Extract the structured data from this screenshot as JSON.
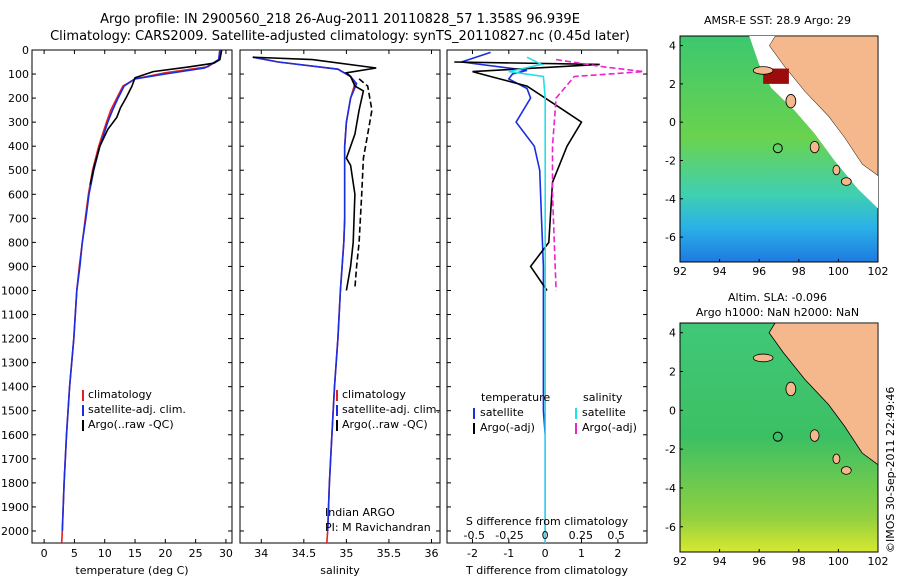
{
  "header": {
    "title_line1": "Argo profile: IN 2900560_218 26-Aug-2011 20110828_57 1.358S 96.939E",
    "title_line2": "Climatology: CARS2009. Satellite-adjusted climatology: synTS_20110827.nc (0.45d later)"
  },
  "colors": {
    "climatology": "#e02020",
    "satellite": "#1a2ee0",
    "argo": "#000000",
    "sal_satellite": "#22e0e8",
    "sal_argo": "#ee22cc"
  },
  "chart_data": [
    {
      "type": "line",
      "name": "temperature-profile",
      "xlabel": "temperature (deg C)",
      "xlim": [
        -2,
        31
      ],
      "ylim": [
        2050,
        0
      ],
      "xticks": [
        0,
        5,
        10,
        15,
        20,
        25,
        30
      ],
      "yticks": [
        0,
        100,
        200,
        300,
        400,
        500,
        600,
        700,
        800,
        900,
        1000,
        1100,
        1200,
        1300,
        1400,
        1500,
        1600,
        1700,
        1800,
        1900,
        2000
      ],
      "legend": [
        "climatology",
        "satellite-adj. clim.",
        "Argo(..raw -QC)"
      ],
      "series": [
        {
          "name": "climatology",
          "color": "#e02020",
          "points": [
            [
              29,
              0
            ],
            [
              28.8,
              40
            ],
            [
              27,
              70
            ],
            [
              20,
              95
            ],
            [
              15,
              120
            ],
            [
              13,
              150
            ],
            [
              12,
              200
            ],
            [
              11,
              250
            ],
            [
              10.3,
              300
            ],
            [
              9,
              400
            ],
            [
              8,
              500
            ],
            [
              7.3,
              600
            ],
            [
              6.8,
              700
            ],
            [
              6.3,
              800
            ],
            [
              5.8,
              900
            ],
            [
              5.4,
              1000
            ],
            [
              4.9,
              1200
            ],
            [
              4.2,
              1400
            ],
            [
              3.7,
              1600
            ],
            [
              3.3,
              1800
            ],
            [
              3,
              2000
            ],
            [
              2.9,
              2050
            ]
          ]
        },
        {
          "name": "satellite",
          "color": "#1a2ee0",
          "points": [
            [
              29,
              0
            ],
            [
              28.8,
              40
            ],
            [
              26.5,
              75
            ],
            [
              20,
              100
            ],
            [
              15,
              120
            ],
            [
              13.2,
              150
            ],
            [
              12.2,
              200
            ],
            [
              11.3,
              250
            ],
            [
              10.5,
              300
            ],
            [
              9.2,
              400
            ],
            [
              8.2,
              500
            ],
            [
              7.4,
              600
            ],
            [
              6.9,
              700
            ],
            [
              6.3,
              800
            ],
            [
              5.9,
              900
            ],
            [
              5.4,
              1000
            ],
            [
              4.9,
              1200
            ],
            [
              4.2,
              1400
            ],
            [
              3.7,
              1600
            ],
            [
              3.3,
              1800
            ],
            [
              3,
              2000
            ]
          ]
        },
        {
          "name": "argo",
          "color": "#000000",
          "points": [
            [
              29.3,
              0
            ],
            [
              29,
              40
            ],
            [
              28,
              55
            ],
            [
              24,
              70
            ],
            [
              18,
              90
            ],
            [
              15,
              115
            ],
            [
              14.5,
              150
            ],
            [
              13.5,
              200
            ],
            [
              12.6,
              240
            ],
            [
              12,
              280
            ],
            [
              10.5,
              330
            ],
            [
              9.2,
              400
            ],
            [
              8.3,
              480
            ],
            [
              7.6,
              560
            ]
          ]
        }
      ]
    },
    {
      "type": "line",
      "name": "salinity-profile",
      "xlabel": "salinity",
      "xlim": [
        33.75,
        36.1
      ],
      "ylim": [
        2050,
        0
      ],
      "xticks": [
        34,
        34.5,
        35,
        35.5,
        36
      ],
      "legend": [
        "climatology",
        "satellite-adj. clim.",
        "Argo(..raw -QC)"
      ],
      "annotation_line1": "Indian ARGO",
      "annotation_line2": "PI: M Ravichandran",
      "series": [
        {
          "name": "climatology",
          "color": "#e02020",
          "points": [
            [
              33.9,
              30
            ],
            [
              34.2,
              50
            ],
            [
              34.9,
              80
            ],
            [
              35.05,
              110
            ],
            [
              35.1,
              140
            ],
            [
              35.05,
              200
            ],
            [
              35.0,
              300
            ],
            [
              34.98,
              400
            ],
            [
              34.98,
              500
            ],
            [
              34.98,
              600
            ],
            [
              34.98,
              700
            ],
            [
              34.97,
              800
            ],
            [
              34.95,
              900
            ],
            [
              34.93,
              1000
            ],
            [
              34.9,
              1200
            ],
            [
              34.86,
              1400
            ],
            [
              34.83,
              1600
            ],
            [
              34.8,
              1800
            ],
            [
              34.78,
              2000
            ],
            [
              34.77,
              2050
            ]
          ]
        },
        {
          "name": "satellite",
          "color": "#1a2ee0",
          "points": [
            [
              33.9,
              30
            ],
            [
              34.2,
              50
            ],
            [
              34.9,
              80
            ],
            [
              35.05,
              110
            ],
            [
              35.12,
              140
            ],
            [
              35.05,
              200
            ],
            [
              35.0,
              300
            ],
            [
              34.98,
              400
            ],
            [
              34.98,
              500
            ],
            [
              34.98,
              600
            ],
            [
              34.98,
              700
            ],
            [
              34.97,
              800
            ],
            [
              34.95,
              900
            ],
            [
              34.93,
              1000
            ],
            [
              34.9,
              1200
            ],
            [
              34.86,
              1400
            ],
            [
              34.83,
              1600
            ],
            [
              34.8,
              1800
            ],
            [
              34.78,
              2000
            ]
          ]
        },
        {
          "name": "argo",
          "color": "#000000",
          "points": [
            [
              33.9,
              30
            ],
            [
              34.6,
              40
            ],
            [
              35.35,
              75
            ],
            [
              35.0,
              95
            ],
            [
              35.05,
              110
            ],
            [
              35.1,
              150
            ],
            [
              35.2,
              170
            ],
            [
              35.15,
              250
            ],
            [
              35.1,
              350
            ],
            [
              35.0,
              450
            ],
            [
              35.05,
              480
            ],
            [
              35.1,
              600
            ],
            [
              35.08,
              800
            ],
            [
              35.05,
              900
            ],
            [
              35.0,
              1000
            ]
          ]
        },
        {
          "name": "argo-adj",
          "color": "#000000",
          "dashed": true,
          "points": [
            [
              35.15,
              120
            ],
            [
              35.25,
              150
            ],
            [
              35.3,
              250
            ],
            [
              35.25,
              350
            ],
            [
              35.2,
              450
            ],
            [
              35.18,
              600
            ],
            [
              35.15,
              800
            ],
            [
              35.12,
              900
            ],
            [
              35.1,
              990
            ]
          ]
        }
      ]
    },
    {
      "type": "line",
      "name": "difference-profile",
      "xlabel": "T difference from climatology",
      "top_axis_label": "S difference from climatology",
      "xlim": [
        -2.7,
        2.8
      ],
      "ylim": [
        2050,
        0
      ],
      "xticks": [
        -2,
        -1,
        0,
        1,
        2
      ],
      "top_ticks": [
        {
          "label": "-0.5",
          "at": -1.95
        },
        {
          "label": "-0.25",
          "at": -0.98
        },
        {
          "label": "0",
          "at": 0
        },
        {
          "label": "0.25",
          "at": 0.98
        },
        {
          "label": "0.5",
          "at": 1.95
        }
      ],
      "legend_temperature_title": "temperature",
      "legend_salinity_title": "salinity",
      "legend_temperature": [
        "satellite",
        "Argo(-adj)"
      ],
      "legend_salinity": [
        "satellite",
        "Argo(-adj)"
      ],
      "series": [
        {
          "name": "T-satellite",
          "color": "#1a2ee0",
          "points": [
            [
              -1.5,
              10
            ],
            [
              -2.3,
              50
            ],
            [
              -0.5,
              85
            ],
            [
              -0.9,
              100
            ],
            [
              -1.0,
              120
            ],
            [
              -0.5,
              160
            ],
            [
              -0.4,
              200
            ],
            [
              -0.8,
              300
            ],
            [
              -0.3,
              400
            ],
            [
              -0.15,
              500
            ],
            [
              -0.1,
              700
            ],
            [
              -0.05,
              900
            ],
            [
              -0.05,
              1100
            ],
            [
              -0.05,
              1400
            ],
            [
              -0.05,
              1500
            ],
            [
              0,
              1600
            ],
            [
              0,
              2050
            ]
          ]
        },
        {
          "name": "T-argo",
          "color": "#000000",
          "points": [
            [
              -2.5,
              50
            ],
            [
              1.5,
              60
            ],
            [
              -2.0,
              90
            ],
            [
              -1.5,
              110
            ],
            [
              -0.5,
              150
            ],
            [
              0.5,
              250
            ],
            [
              1.0,
              300
            ],
            [
              0.6,
              400
            ],
            [
              0.2,
              550
            ],
            [
              0.1,
              800
            ],
            [
              -0.4,
              900
            ],
            [
              0.05,
              1000
            ]
          ]
        },
        {
          "name": "S-satellite",
          "color": "#22e0e8",
          "points": [
            [
              -0.5,
              30
            ],
            [
              -0.1,
              60
            ],
            [
              -1.0,
              90
            ],
            [
              -0.05,
              110
            ],
            [
              0,
              200
            ],
            [
              0,
              400
            ],
            [
              0,
              800
            ],
            [
              0,
              1200
            ],
            [
              0,
              1600
            ],
            [
              0,
              2050
            ]
          ]
        },
        {
          "name": "S-argo",
          "color": "#ee22cc",
          "dashed": true,
          "points": [
            [
              0.3,
              40
            ],
            [
              1.6,
              70
            ],
            [
              2.7,
              90
            ],
            [
              0.8,
              110
            ],
            [
              0.3,
              200
            ],
            [
              0.2,
              400
            ],
            [
              0.2,
              600
            ],
            [
              0.25,
              800
            ],
            [
              0.3,
              1000
            ]
          ]
        }
      ]
    }
  ],
  "maps": {
    "sst_title": "AMSR-E SST: 28.9 Argo: 29",
    "sla_title_line1": "Altim. SLA: -0.096",
    "sla_title_line2": "Argo h1000: NaN h2000: NaN",
    "lon_ticks": [
      "92",
      "94",
      "96",
      "98",
      "100",
      "102"
    ],
    "lat_ticks": [
      "4",
      "2",
      "0",
      "-2",
      "-4",
      "-6"
    ],
    "float_position": {
      "lon": 96.939,
      "lat": -1.358
    },
    "lon_range": [
      92,
      102
    ],
    "lat_range": [
      -7.3,
      4.5
    ],
    "credit": "©IMOS 30-Sep-2011 22:49:46"
  }
}
